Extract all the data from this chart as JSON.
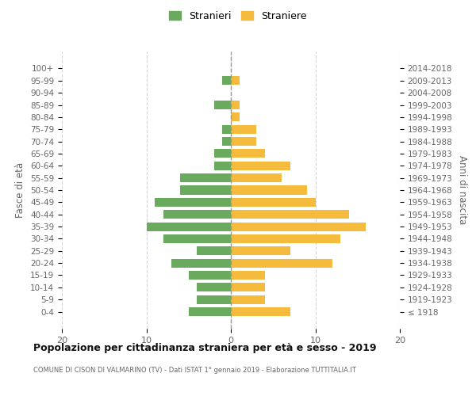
{
  "age_groups": [
    "100+",
    "95-99",
    "90-94",
    "85-89",
    "80-84",
    "75-79",
    "70-74",
    "65-69",
    "60-64",
    "55-59",
    "50-54",
    "45-49",
    "40-44",
    "35-39",
    "30-34",
    "25-29",
    "20-24",
    "15-19",
    "10-14",
    "5-9",
    "0-4"
  ],
  "birth_years": [
    "≤ 1918",
    "1919-1923",
    "1924-1928",
    "1929-1933",
    "1934-1938",
    "1939-1943",
    "1944-1948",
    "1949-1953",
    "1954-1958",
    "1959-1963",
    "1964-1968",
    "1969-1973",
    "1974-1978",
    "1979-1983",
    "1984-1988",
    "1989-1993",
    "1994-1998",
    "1999-2003",
    "2004-2008",
    "2009-2013",
    "2014-2018"
  ],
  "males": [
    0,
    1,
    0,
    2,
    0,
    1,
    1,
    2,
    2,
    6,
    6,
    9,
    8,
    10,
    8,
    4,
    7,
    5,
    4,
    4,
    5
  ],
  "females": [
    0,
    1,
    0,
    1,
    1,
    3,
    3,
    4,
    7,
    6,
    9,
    10,
    14,
    16,
    13,
    7,
    12,
    4,
    4,
    4,
    7
  ],
  "male_color": "#6aaa5e",
  "female_color": "#f5bb3c",
  "background_color": "#ffffff",
  "grid_color": "#cccccc",
  "title": "Popolazione per cittadinanza straniera per età e sesso - 2019",
  "subtitle": "COMUNE DI CISON DI VALMARINO (TV) - Dati ISTAT 1° gennaio 2019 - Elaborazione TUTTITALIA.IT",
  "ylabel_left": "Fasce di età",
  "ylabel_right": "Anni di nascita",
  "legend_male": "Stranieri",
  "legend_female": "Straniere",
  "xlim": 20
}
